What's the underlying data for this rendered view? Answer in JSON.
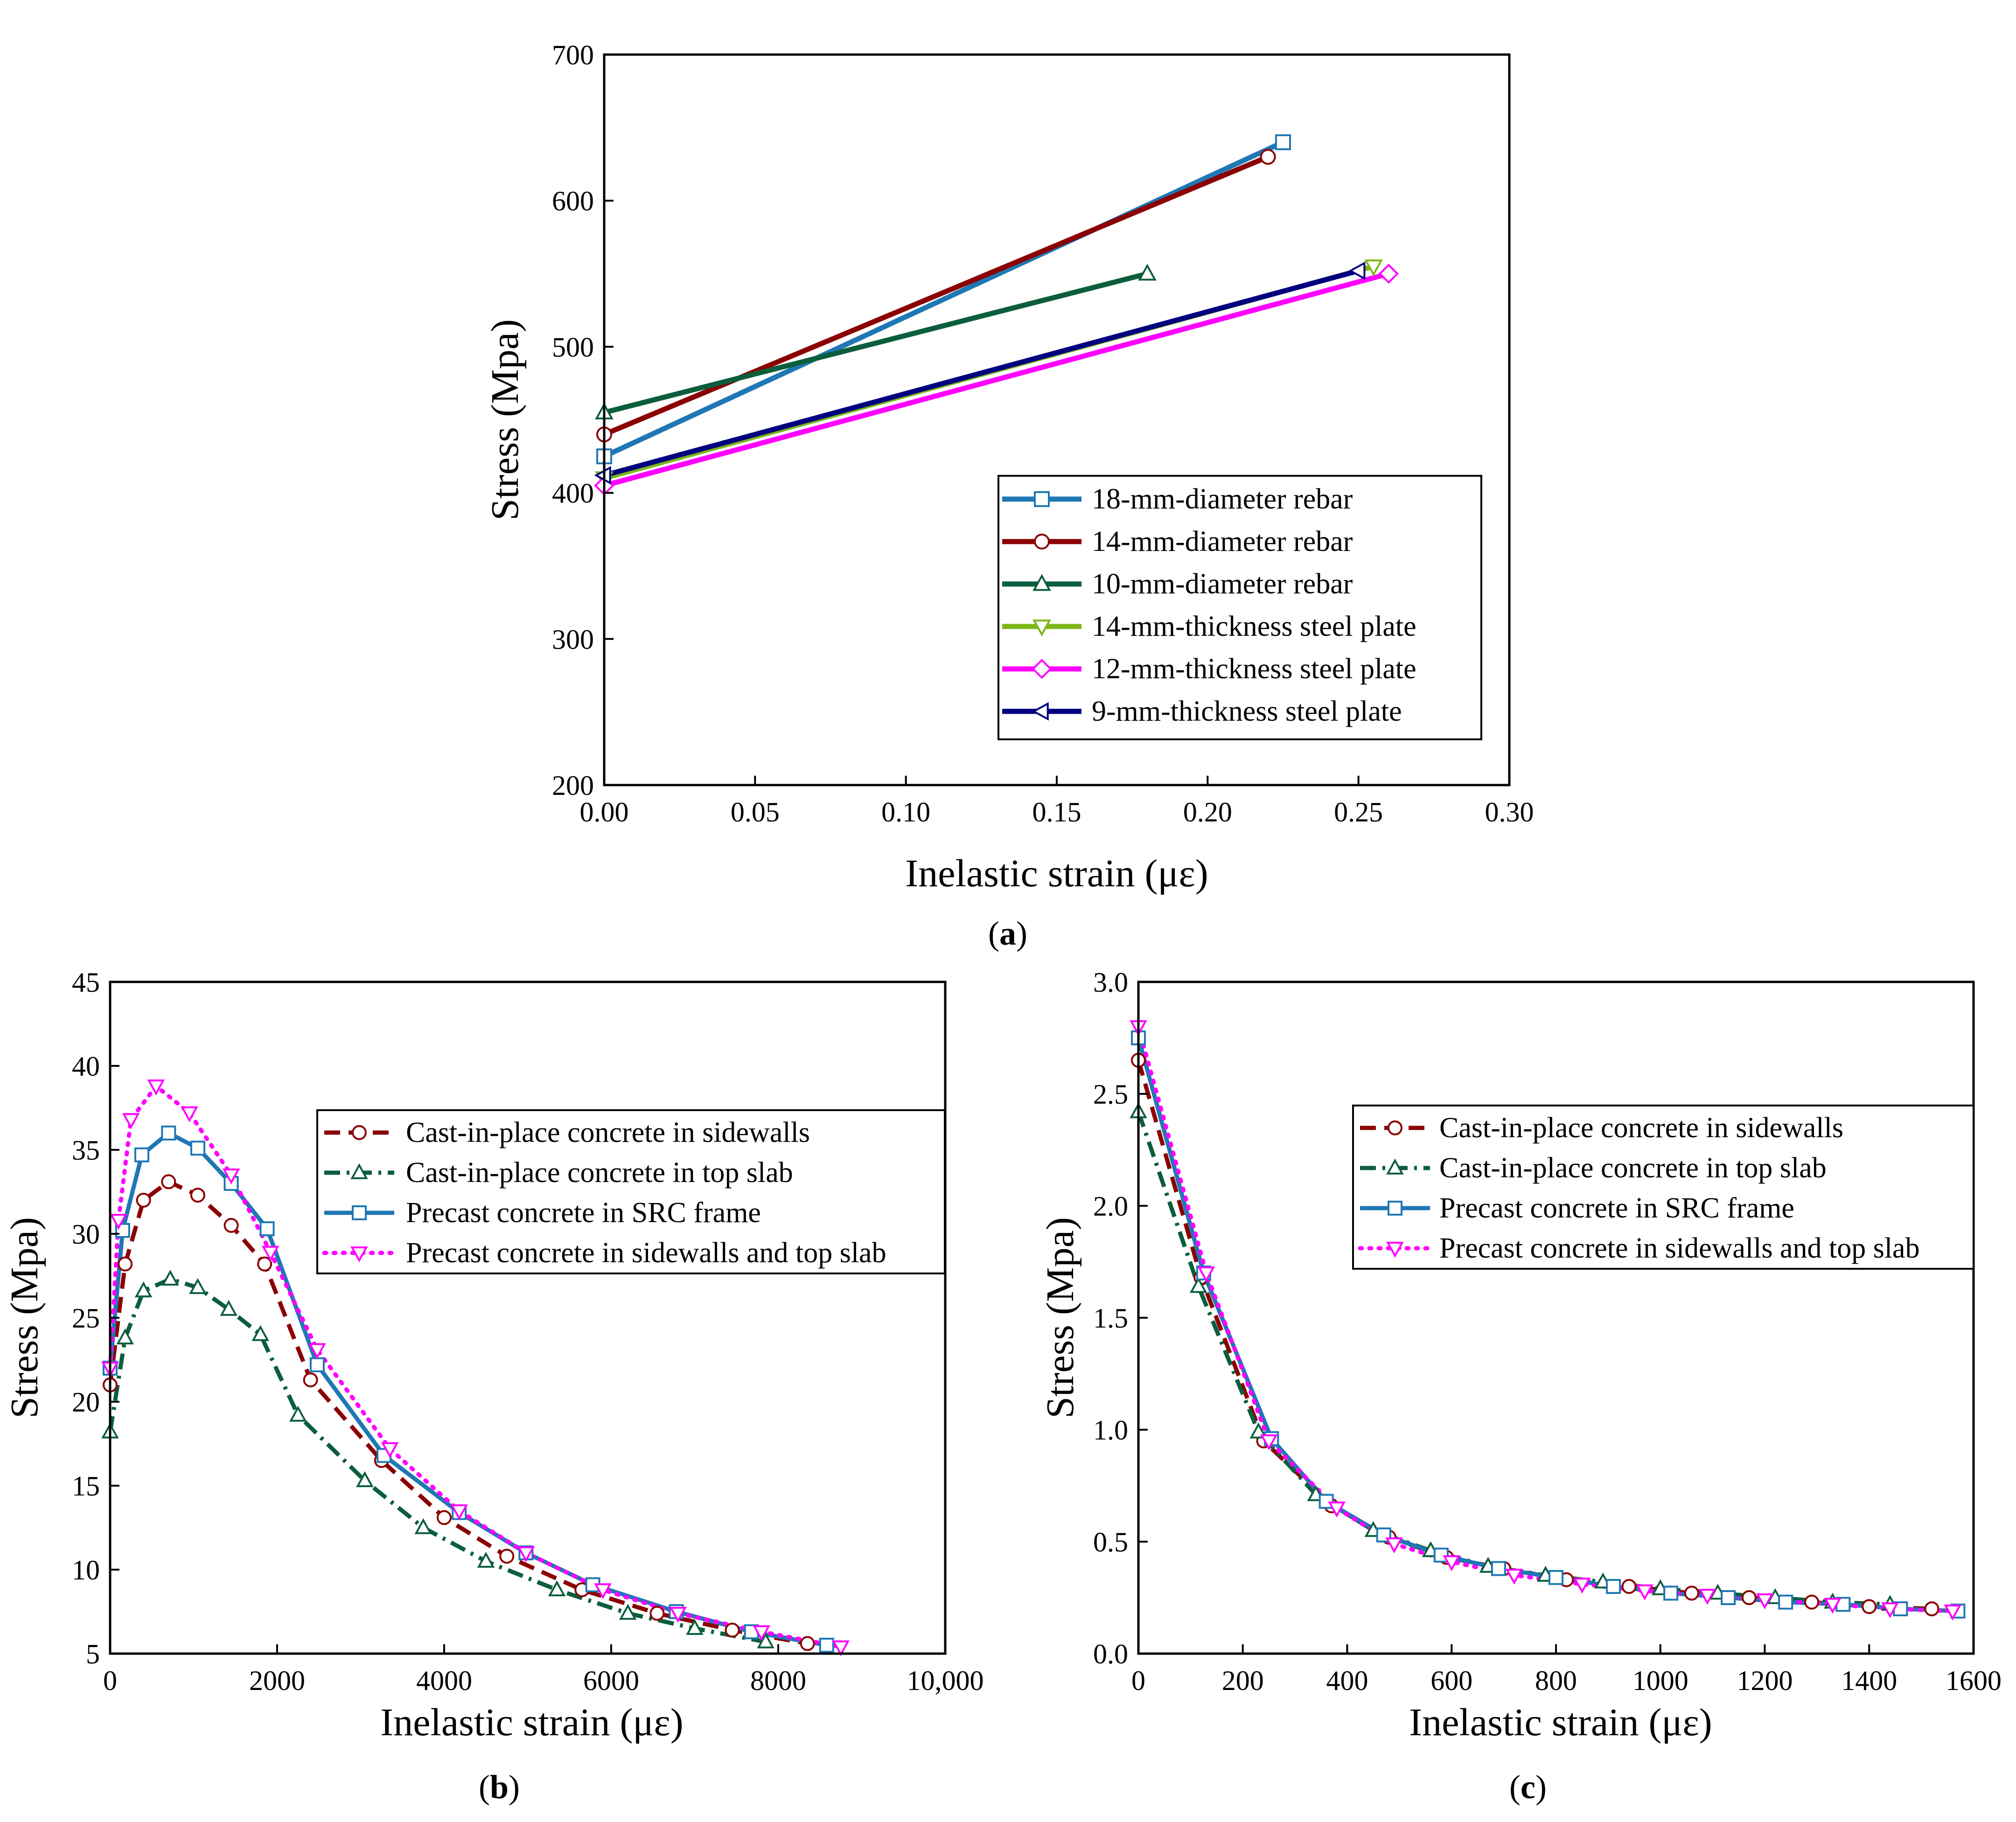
{
  "colors": {
    "blue": "#1f77b4",
    "red": "#8b0000",
    "green": "#0b5e3c",
    "lightgreen": "#7cb518",
    "magenta": "#ff00ff",
    "navy": "#00007f"
  },
  "chart_data": [
    {
      "id": "a",
      "type": "line",
      "caption_prefix": "(",
      "caption_letter": "a",
      "caption_suffix": ")",
      "xlabel": "Inelastic strain (με)",
      "ylabel": "Stress (Mpa)",
      "xlim": [
        0,
        0.3
      ],
      "ylim": [
        200,
        700
      ],
      "xticks": [
        0,
        0.05,
        0.1,
        0.15,
        0.2,
        0.25,
        0.3
      ],
      "xtick_labels": [
        "0.00",
        "0.05",
        "0.10",
        "0.15",
        "0.20",
        "0.25",
        "0.30"
      ],
      "yticks": [
        200,
        300,
        400,
        500,
        600,
        700
      ],
      "ytick_labels": [
        "200",
        "300",
        "400",
        "500",
        "600",
        "700"
      ],
      "legend_position": "bottom-right",
      "series": [
        {
          "name": "18-mm-diameter rebar",
          "color": "#1f77b4",
          "dash": "solid",
          "marker": "square",
          "x": [
            0,
            0.225
          ],
          "y": [
            425,
            640
          ]
        },
        {
          "name": "14-mm-diameter rebar",
          "color": "#8b0000",
          "dash": "solid",
          "marker": "circle",
          "x": [
            0,
            0.22
          ],
          "y": [
            440,
            630
          ]
        },
        {
          "name": "10-mm-diameter rebar",
          "color": "#0b5e3c",
          "dash": "solid",
          "marker": "triangle-up",
          "x": [
            0,
            0.18
          ],
          "y": [
            455,
            550
          ]
        },
        {
          "name": "14-mm-thickness steel plate",
          "color": "#7cb518",
          "dash": "solid",
          "marker": "triangle-down",
          "x": [
            0,
            0.255
          ],
          "y": [
            410,
            555
          ]
        },
        {
          "name": "12-mm-thickness steel plate",
          "color": "#ff00ff",
          "dash": "solid",
          "marker": "diamond",
          "x": [
            0,
            0.26
          ],
          "y": [
            405,
            550
          ]
        },
        {
          "name": "9-mm-thickness steel plate",
          "color": "#00007f",
          "dash": "solid",
          "marker": "triangle-left",
          "x": [
            0,
            0.25
          ],
          "y": [
            412,
            552
          ]
        }
      ]
    },
    {
      "id": "b",
      "type": "line",
      "caption_prefix": "(",
      "caption_letter": "b",
      "caption_suffix": ")",
      "xlabel": "Inelastic strain (με)",
      "ylabel": "Stress (Mpa)",
      "xlim": [
        0,
        10000
      ],
      "ylim": [
        5,
        45
      ],
      "xticks": [
        0,
        2000,
        4000,
        6000,
        8000,
        10000
      ],
      "xtick_labels": [
        "0",
        "2000",
        "4000",
        "6000",
        "8000",
        "10,000"
      ],
      "yticks": [
        5,
        10,
        15,
        20,
        25,
        30,
        35,
        40,
        45
      ],
      "ytick_labels": [
        "5",
        "10",
        "15",
        "20",
        "25",
        "30",
        "35",
        "40",
        "45"
      ],
      "legend_position": "top-right",
      "series": [
        {
          "name": "Cast-in-place concrete in sidewalls",
          "color": "#8b0000",
          "dash": "dash",
          "marker": "circle",
          "x": [
            0,
            180,
            400,
            700,
            1050,
            1450,
            1850,
            2400,
            3250,
            4000,
            4750,
            5650,
            6550,
            7450,
            8350
          ],
          "y": [
            21,
            28.2,
            32,
            33.1,
            32.3,
            30.5,
            28.2,
            21.3,
            16.5,
            13.1,
            10.8,
            8.8,
            7.4,
            6.4,
            5.6
          ]
        },
        {
          "name": "Cast-in-place concrete in top slab",
          "color": "#0b5e3c",
          "dash": "dashdot",
          "marker": "triangle-up",
          "x": [
            0,
            180,
            400,
            720,
            1050,
            1420,
            1800,
            2250,
            3050,
            3750,
            4500,
            5350,
            6200,
            7000,
            7850
          ],
          "y": [
            18.2,
            23.8,
            26.6,
            27.3,
            26.8,
            25.5,
            24,
            19.2,
            15.3,
            12.5,
            10.5,
            8.8,
            7.4,
            6.5,
            5.7
          ]
        },
        {
          "name": "Precast concrete in SRC frame",
          "color": "#1f77b4",
          "dash": "solid",
          "marker": "square",
          "x": [
            0,
            150,
            380,
            700,
            1050,
            1450,
            1880,
            2480,
            3280,
            4180,
            4980,
            5780,
            6780,
            7680,
            8580
          ],
          "y": [
            22,
            30.2,
            34.7,
            36,
            35.1,
            33,
            30.3,
            22.2,
            16.8,
            13.4,
            11,
            9.1,
            7.5,
            6.3,
            5.5
          ]
        },
        {
          "name": "Precast concrete in sidewalls and top slab",
          "color": "#ff00ff",
          "dash": "dot",
          "marker": "triangle-down",
          "x": [
            0,
            100,
            250,
            550,
            950,
            1450,
            1920,
            2480,
            3350,
            4180,
            4980,
            5900,
            6800,
            7800,
            8750
          ],
          "y": [
            22,
            30.8,
            36.8,
            38.8,
            37.2,
            33.5,
            28.9,
            23.1,
            17.2,
            13.5,
            11,
            8.8,
            7.4,
            6.3,
            5.4
          ]
        }
      ]
    },
    {
      "id": "c",
      "type": "line",
      "caption_prefix": "(",
      "caption_letter": "c",
      "caption_suffix": ")",
      "xlabel": "Inelastic strain (με)",
      "ylabel": "Stress (Mpa)",
      "xlim": [
        0,
        1600
      ],
      "ylim": [
        0,
        3
      ],
      "xticks": [
        0,
        200,
        400,
        600,
        800,
        1000,
        1200,
        1400,
        1600
      ],
      "xtick_labels": [
        "0",
        "200",
        "400",
        "600",
        "800",
        "1000",
        "1200",
        "1400",
        "1600"
      ],
      "yticks": [
        0,
        0.5,
        1,
        1.5,
        2,
        2.5,
        3
      ],
      "ytick_labels": [
        "0.0",
        "0.5",
        "1.0",
        "1.5",
        "2.0",
        "2.5",
        "3.0"
      ],
      "legend_position": "top-right",
      "series": [
        {
          "name": "Cast-in-place concrete in sidewalls",
          "color": "#8b0000",
          "dash": "dash",
          "marker": "circle",
          "x": [
            0,
            120,
            240,
            370,
            480,
            590,
            700,
            820,
            940,
            1060,
            1170,
            1290,
            1400,
            1520
          ],
          "y": [
            2.65,
            1.68,
            0.95,
            0.66,
            0.52,
            0.43,
            0.38,
            0.33,
            0.3,
            0.27,
            0.25,
            0.23,
            0.21,
            0.2
          ]
        },
        {
          "name": "Cast-in-place concrete in top slab",
          "color": "#0b5e3c",
          "dash": "dashdot",
          "marker": "triangle-up",
          "x": [
            0,
            115,
            230,
            340,
            450,
            560,
            670,
            780,
            890,
            1000,
            1110,
            1220,
            1330,
            1440
          ],
          "y": [
            2.42,
            1.64,
            0.99,
            0.71,
            0.55,
            0.46,
            0.39,
            0.35,
            0.32,
            0.29,
            0.27,
            0.25,
            0.23,
            0.22
          ]
        },
        {
          "name": "Precast concrete in SRC frame",
          "color": "#1f77b4",
          "dash": "solid",
          "marker": "square",
          "x": [
            0,
            125,
            255,
            360,
            470,
            580,
            690,
            800,
            910,
            1020,
            1130,
            1240,
            1350,
            1460,
            1570
          ],
          "y": [
            2.75,
            1.7,
            0.96,
            0.68,
            0.53,
            0.44,
            0.38,
            0.34,
            0.3,
            0.27,
            0.25,
            0.23,
            0.22,
            0.2,
            0.19
          ]
        },
        {
          "name": "Precast concrete in sidewalls and top slab",
          "color": "#ff00ff",
          "dash": "dot",
          "marker": "triangle-down",
          "x": [
            0,
            130,
            250,
            380,
            490,
            600,
            720,
            850,
            970,
            1090,
            1200,
            1330,
            1440,
            1560
          ],
          "y": [
            2.8,
            1.7,
            0.95,
            0.65,
            0.49,
            0.41,
            0.35,
            0.31,
            0.28,
            0.26,
            0.24,
            0.22,
            0.2,
            0.19
          ]
        }
      ]
    }
  ]
}
